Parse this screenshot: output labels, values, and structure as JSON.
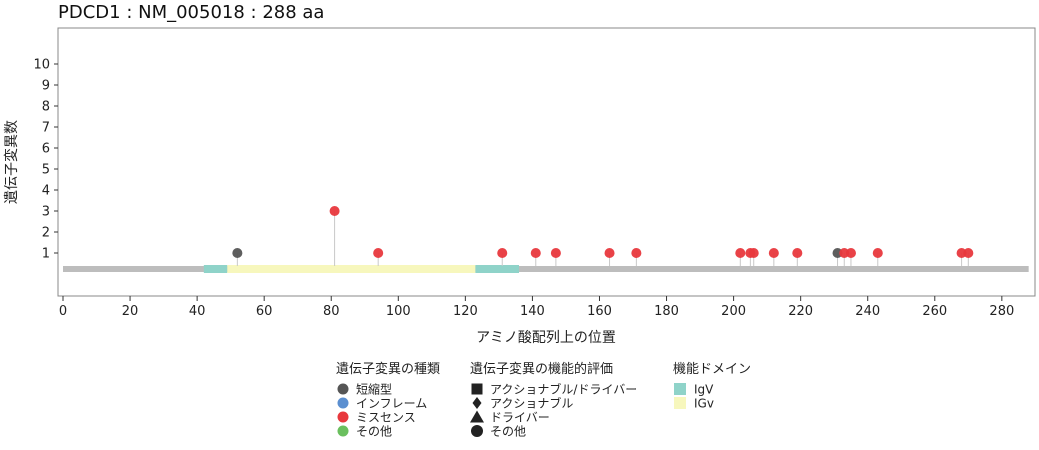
{
  "title": "PDCD1 : NM_005018 : 288 aa",
  "chart_data": {
    "type": "lollipop",
    "title": "PDCD1 : NM_005018 : 288 aa",
    "xlabel": "アミノ酸配列上の位置",
    "ylabel": "遺伝子変異数",
    "xlim": [
      0,
      288
    ],
    "ylim": [
      0,
      11
    ],
    "x_ticks": [
      0,
      20,
      40,
      60,
      80,
      100,
      120,
      140,
      160,
      180,
      200,
      220,
      240,
      260,
      280
    ],
    "y_ticks": [
      1,
      2,
      3,
      4,
      5,
      6,
      7,
      8,
      9,
      10
    ],
    "protein_length": 288,
    "domains": [
      {
        "name": "IgV",
        "start": 42,
        "end": 49,
        "color": "#8fd3c9"
      },
      {
        "name": "IGv",
        "start": 49,
        "end": 123,
        "color": "#f7f7bd"
      },
      {
        "name": "IgV",
        "start": 123,
        "end": 136,
        "color": "#8fd3c9"
      }
    ],
    "mutations": [
      {
        "position": 52,
        "count": 1,
        "type": "短縮型"
      },
      {
        "position": 81,
        "count": 3,
        "type": "ミスセンス"
      },
      {
        "position": 94,
        "count": 1,
        "type": "ミスセンス"
      },
      {
        "position": 131,
        "count": 1,
        "type": "ミスセンス"
      },
      {
        "position": 141,
        "count": 1,
        "type": "ミスセンス"
      },
      {
        "position": 147,
        "count": 1,
        "type": "ミスセンス"
      },
      {
        "position": 163,
        "count": 1,
        "type": "ミスセンス"
      },
      {
        "position": 171,
        "count": 1,
        "type": "ミスセンス"
      },
      {
        "position": 202,
        "count": 1,
        "type": "ミスセンス"
      },
      {
        "position": 205,
        "count": 1,
        "type": "ミスセンス"
      },
      {
        "position": 206,
        "count": 1,
        "type": "ミスセンス"
      },
      {
        "position": 212,
        "count": 1,
        "type": "ミスセンス"
      },
      {
        "position": 219,
        "count": 1,
        "type": "ミスセンス"
      },
      {
        "position": 231,
        "count": 1,
        "type": "短縮型"
      },
      {
        "position": 233,
        "count": 1,
        "type": "ミスセンス"
      },
      {
        "position": 235,
        "count": 1,
        "type": "ミスセンス"
      },
      {
        "position": 243,
        "count": 1,
        "type": "ミスセンス"
      },
      {
        "position": 268,
        "count": 1,
        "type": "ミスセンス"
      },
      {
        "position": 270,
        "count": 1,
        "type": "ミスセンス"
      }
    ],
    "mutation_type_colors": {
      "短縮型": "#555555",
      "インフレーム": "#5b8fd0",
      "ミスセンス": "#e8383d",
      "その他": "#6abf5e"
    }
  },
  "legend": {
    "mutation_types": {
      "title": "遺伝子変異の種類",
      "items": [
        {
          "label": "短縮型",
          "color": "#555555"
        },
        {
          "label": "インフレーム",
          "color": "#5b8fd0"
        },
        {
          "label": "ミスセンス",
          "color": "#e8383d"
        },
        {
          "label": "その他",
          "color": "#6abf5e"
        }
      ]
    },
    "evaluation": {
      "title": "遺伝子変異の機能的評価",
      "items": [
        {
          "label": "アクショナブル/ドライバー",
          "shape": "square"
        },
        {
          "label": "アクショナブル",
          "shape": "diamond"
        },
        {
          "label": "ドライバー",
          "shape": "triangle"
        },
        {
          "label": "その他",
          "shape": "circle"
        }
      ]
    },
    "domains": {
      "title": "機能ドメイン",
      "items": [
        {
          "label": "IgV",
          "color": "#8fd3c9"
        },
        {
          "label": "IGv",
          "color": "#f7f7bd"
        }
      ]
    }
  }
}
